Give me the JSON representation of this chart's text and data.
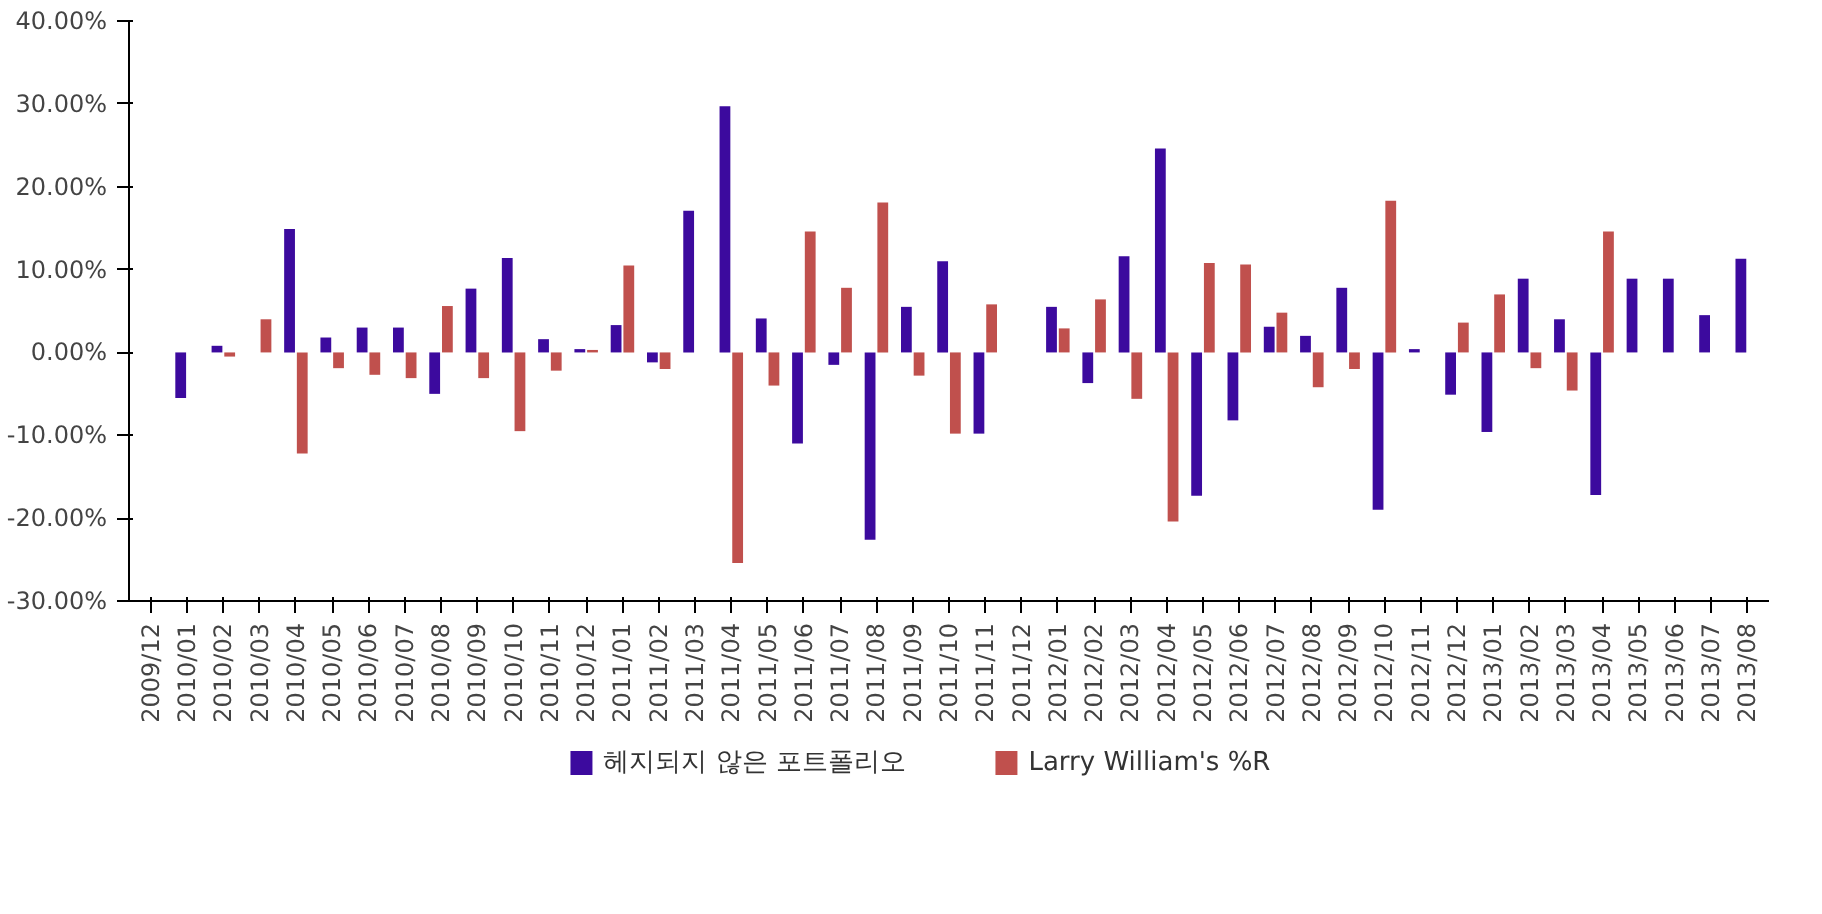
{
  "chart_data": {
    "type": "bar",
    "categories": [
      "2009/12",
      "2010/01",
      "2010/02",
      "2010/03",
      "2010/04",
      "2010/05",
      "2010/06",
      "2010/07",
      "2010/08",
      "2010/09",
      "2010/10",
      "2010/11",
      "2010/12",
      "2011/01",
      "2011/02",
      "2011/03",
      "2011/04",
      "2011/05",
      "2011/06",
      "2011/07",
      "2011/08",
      "2011/09",
      "2011/10",
      "2011/11",
      "2011/12",
      "2012/01",
      "2012/02",
      "2012/03",
      "2012/04",
      "2012/05",
      "2012/06",
      "2012/07",
      "2012/08",
      "2012/09",
      "2012/10",
      "2012/11",
      "2012/12",
      "2013/01",
      "2013/02",
      "2013/03",
      "2013/04",
      "2013/05",
      "2013/06",
      "2013/07",
      "2013/08"
    ],
    "series": [
      {
        "name": "헤지되지 않은 포트폴리오",
        "color": "#3c0a9e",
        "values": [
          null,
          -5.5,
          0.8,
          null,
          14.9,
          1.8,
          3.0,
          3.0,
          -5.0,
          7.7,
          11.4,
          1.6,
          0.4,
          3.3,
          -1.2,
          17.1,
          29.7,
          4.1,
          -11.0,
          -1.5,
          -22.6,
          5.5,
          11.0,
          -9.8,
          null,
          5.5,
          -3.7,
          11.6,
          24.6,
          -17.3,
          -8.2,
          3.1,
          2.0,
          7.8,
          -19.0,
          0.4,
          -5.1,
          -9.6,
          8.9,
          4.0,
          -17.2,
          8.9,
          8.9,
          4.5,
          11.3
        ]
      },
      {
        "name": "Larry William's %R",
        "color": "#c0504d",
        "values": [
          null,
          null,
          -0.5,
          4.0,
          -12.2,
          -1.9,
          -2.7,
          -3.1,
          5.6,
          -3.1,
          -9.5,
          -2.2,
          0.3,
          10.5,
          -2.0,
          null,
          -25.4,
          -4.0,
          14.6,
          7.8,
          18.1,
          -2.8,
          -9.8,
          5.8,
          null,
          2.9,
          6.4,
          -5.6,
          -20.4,
          10.8,
          10.6,
          4.8,
          -4.2,
          -2.0,
          18.3,
          null,
          3.6,
          7.0,
          -1.9,
          -4.6,
          14.6,
          null,
          null,
          null,
          null
        ]
      }
    ],
    "ylim": [
      -30,
      40
    ],
    "yticks": [
      {
        "value": -30,
        "label": "-30.00%"
      },
      {
        "value": -20,
        "label": "-20.00%"
      },
      {
        "value": -10,
        "label": "-10.00%"
      },
      {
        "value": 0,
        "label": "0.00%"
      },
      {
        "value": 10,
        "label": "10.00%"
      },
      {
        "value": 20,
        "label": "20.00%"
      },
      {
        "value": 30,
        "label": "30.00%"
      },
      {
        "value": 40,
        "label": "40.00%"
      }
    ],
    "grid": false,
    "legend": "bottom"
  }
}
